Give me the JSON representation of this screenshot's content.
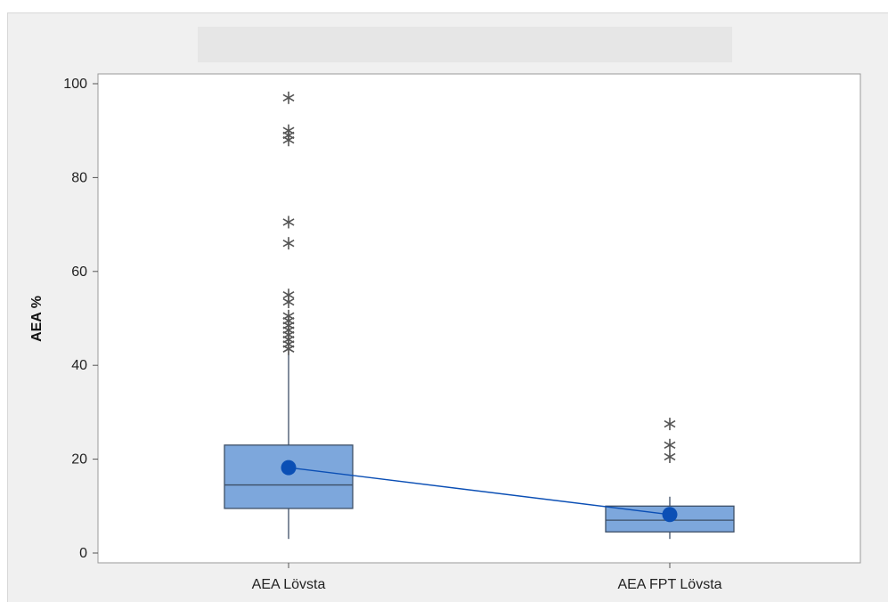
{
  "chart_data": {
    "type": "boxplot",
    "title": "",
    "xlabel": "",
    "ylabel": "AEA %",
    "ylim": [
      -1,
      101
    ],
    "yticks": [
      "0",
      "20",
      "40",
      "60",
      "80",
      "100"
    ],
    "grid": false,
    "mean_connect_line": true,
    "colors": {
      "box_fill": "#7da7dc",
      "box_stroke": "#3d4f66",
      "mean": "#0b4fb5",
      "outlier": "#555555",
      "plot_bg": "#ffffff"
    },
    "boxes": [
      {
        "category": "AEA Lövsta",
        "whisker_low": 3,
        "q1": 9.5,
        "median": 14.5,
        "q3": 23,
        "whisker_high": 43,
        "mean": 18.2,
        "outliers": [
          43.5,
          44.5,
          45.5,
          46.5,
          47.5,
          48.5,
          49.5,
          50.5,
          53.5,
          55,
          66,
          70.5,
          88,
          89,
          90,
          97
        ]
      },
      {
        "category": "AEA FPT Lövsta",
        "whisker_low": 3,
        "q1": 4.5,
        "median": 7,
        "q3": 10,
        "whisker_high": 12,
        "mean": 8.2,
        "outliers": [
          20.5,
          23,
          27.5
        ]
      }
    ]
  }
}
